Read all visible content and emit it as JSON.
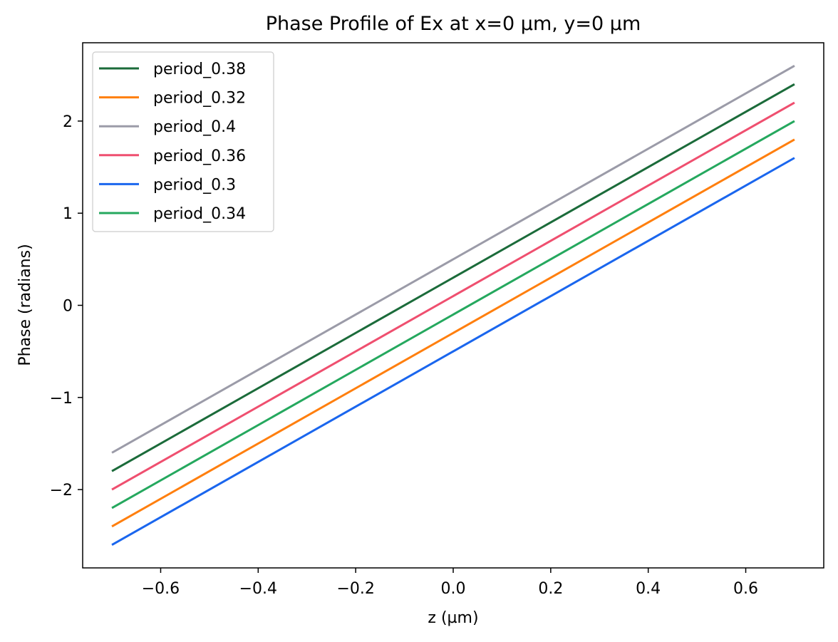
{
  "chart_data": {
    "type": "line",
    "title": "Phase Profile of Ex at x=0 µm, y=0 µm",
    "xlabel": "z (µm)",
    "ylabel": "Phase (radians)",
    "xlim": [
      -0.76,
      0.76
    ],
    "ylim": [
      -2.85,
      2.85
    ],
    "xticks": [
      -0.6,
      -0.4,
      -0.2,
      0.0,
      0.2,
      0.4,
      0.6
    ],
    "xtick_labels": [
      "−0.6",
      "−0.4",
      "−0.2",
      "0.0",
      "0.2",
      "0.4",
      "0.6"
    ],
    "yticks": [
      -2,
      -1,
      0,
      1,
      2
    ],
    "ytick_labels": [
      "−2",
      "−1",
      "0",
      "1",
      "2"
    ],
    "grid": false,
    "legend_position": "top-left",
    "x": [
      -0.7,
      0.7
    ],
    "series": [
      {
        "name": "period_0.38",
        "color": "#1b6b3a",
        "values": [
          -1.8,
          2.4
        ]
      },
      {
        "name": "period_0.32",
        "color": "#ff7f0e",
        "values": [
          -2.4,
          1.8
        ]
      },
      {
        "name": "period_0.4",
        "color": "#9b9ba8",
        "values": [
          -1.6,
          2.6
        ]
      },
      {
        "name": "period_0.36",
        "color": "#ef4f6f",
        "values": [
          -2.0,
          2.2
        ]
      },
      {
        "name": "period_0.3",
        "color": "#1a66ee",
        "values": [
          -2.6,
          1.6
        ]
      },
      {
        "name": "period_0.34",
        "color": "#25a85e",
        "values": [
          -2.2,
          2.0
        ]
      }
    ]
  }
}
